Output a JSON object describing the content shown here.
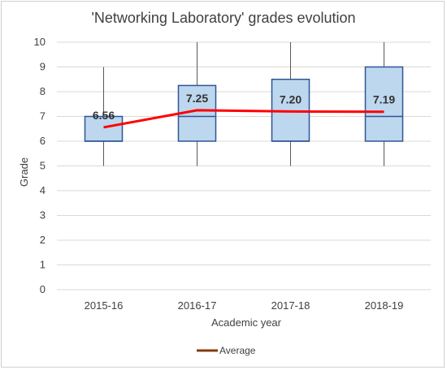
{
  "chart_data": {
    "type": "box",
    "title": "'Networking Laboratory' grades evolution",
    "xlabel": "Academic year",
    "ylabel": "Grade",
    "ylim": [
      0,
      10
    ],
    "yticks": [
      "0",
      "1",
      "2",
      "3",
      "4",
      "5",
      "6",
      "7",
      "8",
      "9",
      "10"
    ],
    "categories": [
      "2015-16",
      "2016-17",
      "2017-18",
      "2018-19"
    ],
    "boxes": [
      {
        "min": 5,
        "q1": 6,
        "median": 6,
        "q3": 7,
        "max": 9
      },
      {
        "min": 5,
        "q1": 6,
        "median": 7,
        "q3": 8.25,
        "max": 10
      },
      {
        "min": 5,
        "q1": 6,
        "median": 6,
        "q3": 8.5,
        "max": 10
      },
      {
        "min": 5,
        "q1": 6,
        "median": 7,
        "q3": 9,
        "max": 10
      }
    ],
    "series": [
      {
        "name": "Average",
        "values": [
          6.56,
          7.25,
          7.2,
          7.19
        ],
        "labels": [
          "6.56",
          "7.25",
          "7.20",
          "7.19"
        ]
      }
    ],
    "legend_position": "bottom",
    "grid": true,
    "colors": {
      "box_fill": "#bdd7ee",
      "box_stroke": "#2e5597",
      "whisker": "#595959",
      "average_line": "#ff0000",
      "legend_swatch": "#843c0c",
      "grid": "#d9d9d9"
    }
  }
}
